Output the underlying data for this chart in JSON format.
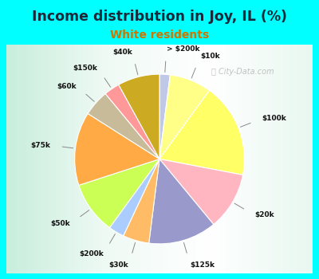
{
  "title": "Income distribution in Joy, IL (%)",
  "subtitle": "White residents",
  "title_color": "#1a2a3a",
  "subtitle_color": "#cc7700",
  "background_color": "#00FFFF",
  "labels": [
    "> $200k",
    "$10k",
    "$100k",
    "$20k",
    "$125k",
    "$30k",
    "$200k",
    "$50k",
    "$75k",
    "$60k",
    "$150k",
    "$40k"
  ],
  "sizes": [
    2,
    8,
    18,
    11,
    13,
    5,
    3,
    10,
    14,
    5,
    3,
    8
  ],
  "colors": [
    "#c0c8e8",
    "#ffff88",
    "#ffff66",
    "#ffb6c1",
    "#9999cc",
    "#ffbb66",
    "#aaccff",
    "#ccff55",
    "#ffaa44",
    "#c8bb99",
    "#ff9999",
    "#ccaa22"
  ],
  "startangle": 90
}
